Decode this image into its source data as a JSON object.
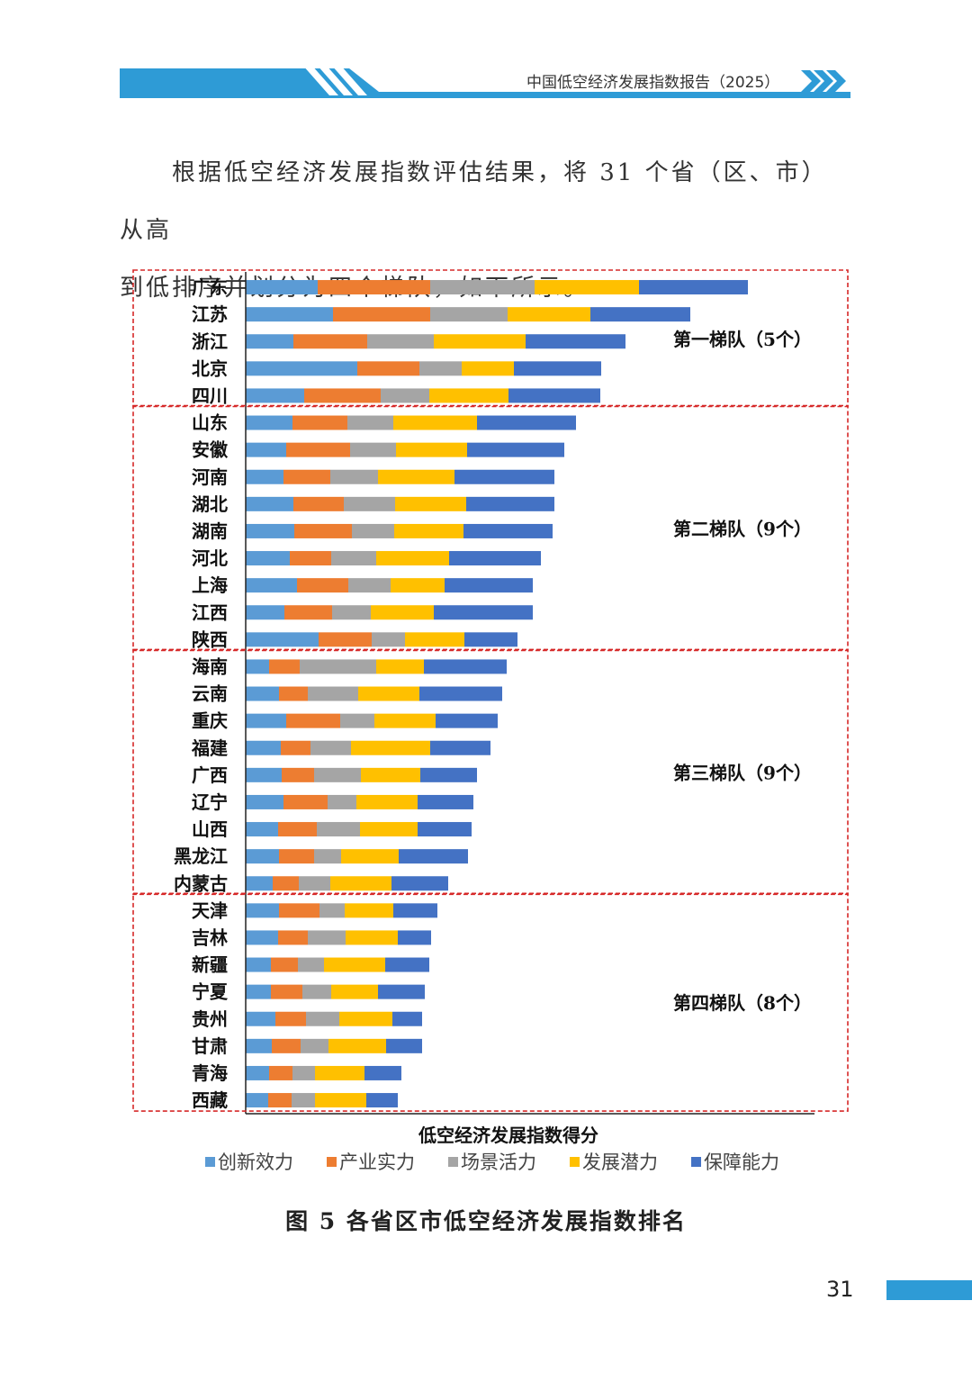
{
  "header": {
    "title": "中国低空经济发展指数报告（2025）",
    "accent_color": "#2e9bd6"
  },
  "intro": {
    "line1": "根据低空经济发展指数评估结果，将 31 个省（区、市）从高",
    "line2": "到低排序并划分为四个梯队，如下所示。"
  },
  "chart_data": {
    "type": "bar",
    "orientation": "horizontal",
    "stacked": true,
    "title": "",
    "xlabel": "低空经济发展指数得分",
    "ylabel": "",
    "categories": [
      "广东",
      "江苏",
      "浙江",
      "北京",
      "四川",
      "山东",
      "安徽",
      "河南",
      "湖北",
      "湖南",
      "河北",
      "上海",
      "江西",
      "陕西",
      "海南",
      "云南",
      "重庆",
      "福建",
      "广西",
      "辽宁",
      "山西",
      "黑龙江",
      "内蒙古",
      "天津",
      "吉林",
      "新疆",
      "宁夏",
      "贵州",
      "甘肃",
      "青海",
      "西藏"
    ],
    "series": [
      {
        "name": "创新效力",
        "color": "#5b9bd5",
        "values": [
          80,
          97,
          53,
          124,
          65,
          52,
          45,
          42,
          53,
          54,
          49,
          57,
          43,
          81,
          26,
          37,
          45,
          39,
          40,
          42,
          36,
          37,
          30,
          37,
          36,
          28,
          28,
          33,
          29,
          26,
          25
        ]
      },
      {
        "name": "产业实力",
        "color": "#ed7d31",
        "values": [
          125,
          108,
          82,
          69,
          85,
          61,
          71,
          52,
          56,
          64,
          46,
          57,
          53,
          59,
          34,
          32,
          60,
          33,
          36,
          49,
          43,
          39,
          29,
          45,
          33,
          30,
          35,
          34,
          32,
          26,
          26
        ]
      },
      {
        "name": "场景活力",
        "color": "#a5a5a5",
        "values": [
          116,
          86,
          74,
          47,
          54,
          51,
          51,
          53,
          57,
          47,
          50,
          47,
          43,
          37,
          85,
          56,
          38,
          45,
          52,
          32,
          48,
          30,
          35,
          28,
          42,
          29,
          32,
          37,
          31,
          25,
          26
        ]
      },
      {
        "name": "发展潜力",
        "color": "#ffc000",
        "values": [
          116,
          92,
          102,
          58,
          88,
          93,
          79,
          85,
          79,
          77,
          81,
          60,
          70,
          66,
          53,
          68,
          68,
          88,
          66,
          68,
          64,
          64,
          68,
          54,
          58,
          68,
          52,
          59,
          64,
          55,
          57
        ]
      },
      {
        "name": "保障能力",
        "color": "#4472c4",
        "values": [
          121,
          111,
          111,
          97,
          102,
          110,
          108,
          111,
          98,
          99,
          102,
          98,
          110,
          59,
          92,
          92,
          69,
          67,
          63,
          62,
          60,
          77,
          63,
          49,
          37,
          49,
          52,
          33,
          40,
          41,
          35
        ]
      }
    ],
    "tiers": [
      {
        "label": "第一梯队（5个）",
        "count": 5
      },
      {
        "label": "第二梯队（9个）",
        "count": 9
      },
      {
        "label": "第三梯队（9个）",
        "count": 9
      },
      {
        "label": "第四梯队（8个）",
        "count": 8
      }
    ],
    "legend_position": "bottom",
    "grid": false
  },
  "caption": "图 5  各省区市低空经济发展指数排名",
  "page_number": "31"
}
